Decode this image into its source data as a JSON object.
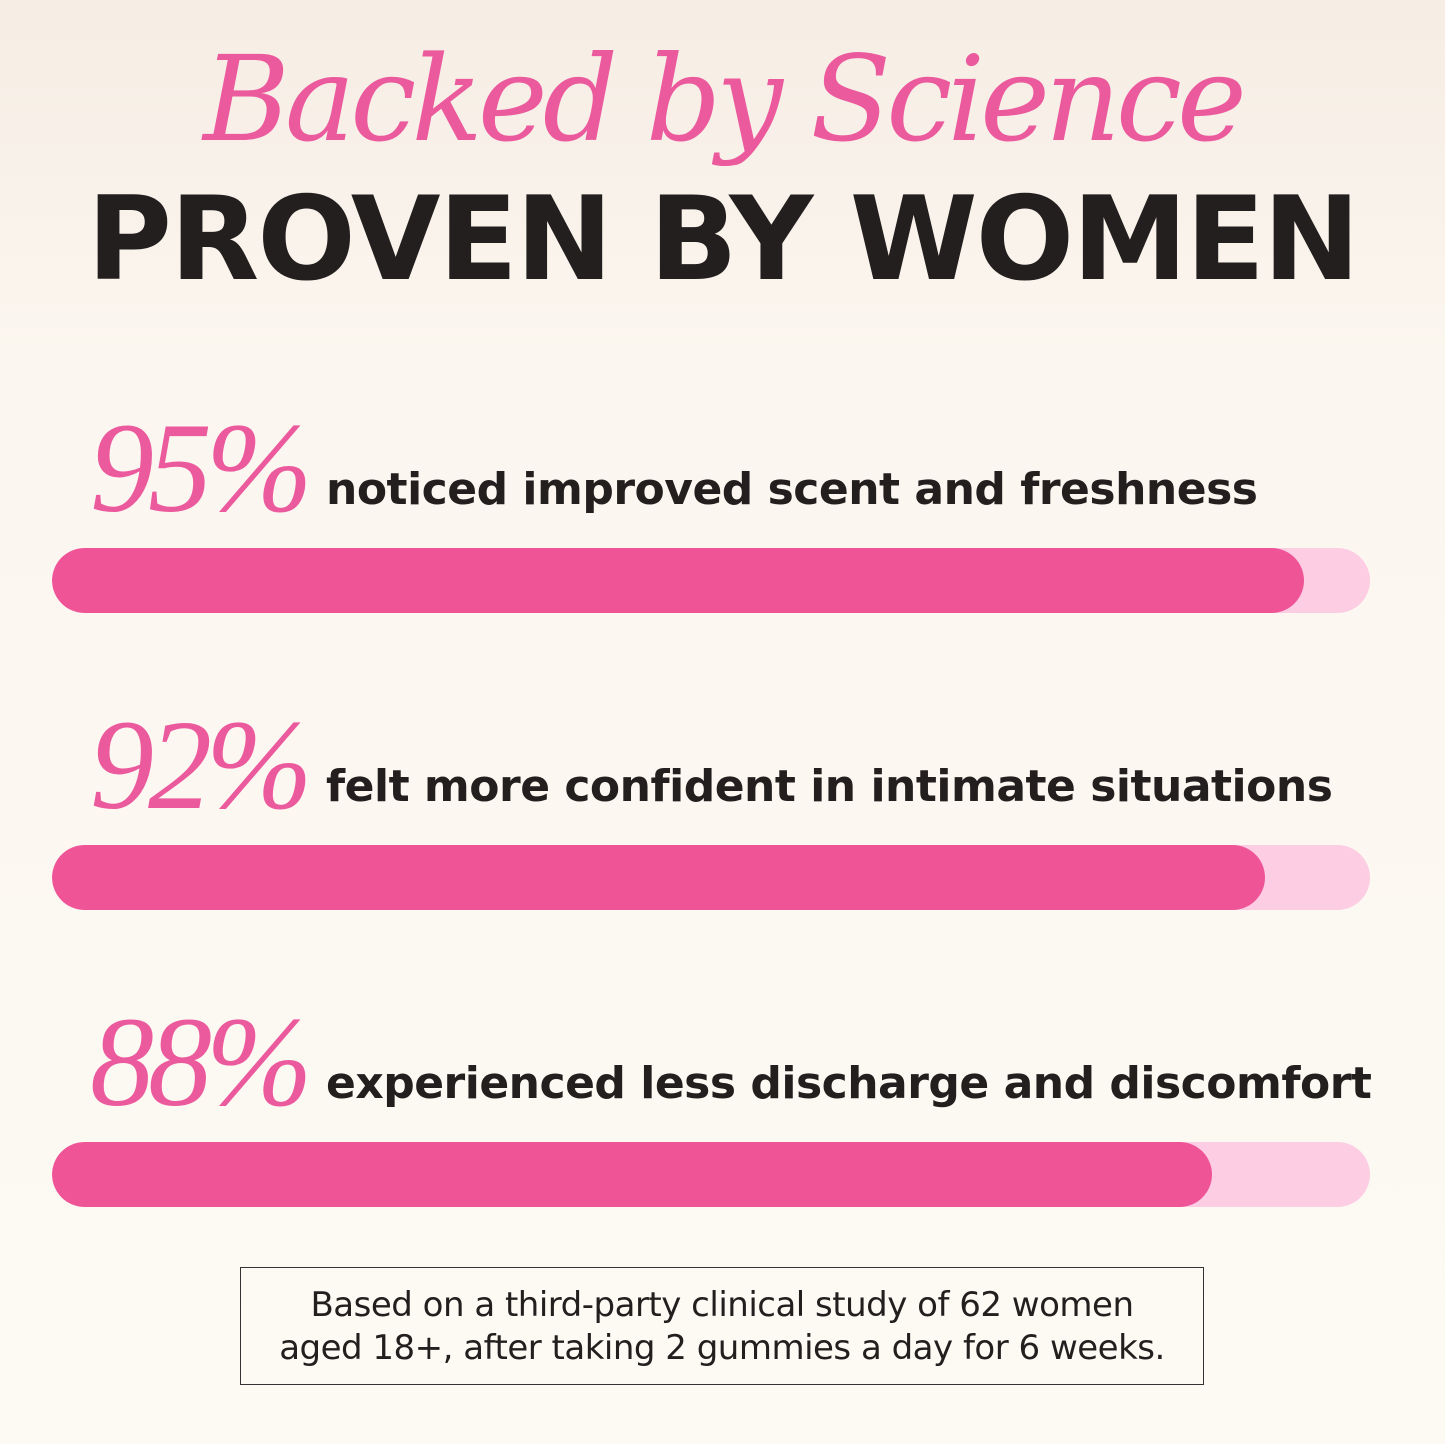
{
  "header": {
    "script_title": "Backed by Science",
    "title": "PROVEN BY WOMEN"
  },
  "colors": {
    "accent": "#ef5497",
    "track": "#fccde3",
    "text": "#231f1f"
  },
  "chart_data": {
    "type": "bar",
    "orientation": "horizontal",
    "categories": [
      "noticed improved scent and freshness",
      "felt more confident in intimate situations",
      "experienced less discharge and discomfort"
    ],
    "values": [
      95,
      92,
      88
    ],
    "value_labels": [
      "95%",
      "92%",
      "88%"
    ],
    "xlim": [
      0,
      100
    ]
  },
  "footnote": {
    "line1": "Based on a third-party clinical study of 62 women",
    "line2": "aged 18+, after taking 2 gummies a day for 6 weeks."
  }
}
